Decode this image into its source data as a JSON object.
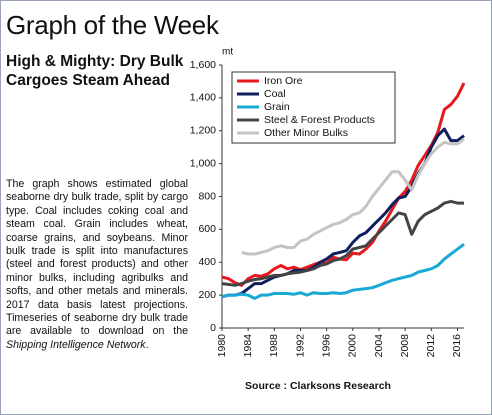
{
  "header": {
    "title": "Graph of the Week"
  },
  "subtitle": "High & Mighty: Dry Bulk Cargoes Steam Ahead",
  "body": [
    "The graph shows estimated global seaborne dry bulk trade, split by cargo type. Coal includes coking coal and steam coal. Grain includes wheat, coarse grains, and soybeans. Minor bulk trade is split into manufactures (steel and forest products) and other minor bulks, including agribulks and softs, and other metals and minerals. 2017 data basis latest projections. Timeseries of seaborne dry bulk trade are available to download on the",
    "Shipping Intelligence Network",
    "."
  ],
  "chart_data": {
    "type": "line",
    "y_unit": "mt",
    "source": "Source : Clarksons Research",
    "x": [
      1980,
      1981,
      1982,
      1983,
      1984,
      1985,
      1986,
      1987,
      1988,
      1989,
      1990,
      1991,
      1992,
      1993,
      1994,
      1995,
      1996,
      1997,
      1998,
      1999,
      2000,
      2001,
      2002,
      2003,
      2004,
      2005,
      2006,
      2007,
      2008,
      2009,
      2010,
      2011,
      2012,
      2013,
      2014,
      2015,
      2016,
      2017
    ],
    "xlim": [
      1980,
      2017
    ],
    "xticks": [
      1980,
      1984,
      1988,
      1992,
      1996,
      2000,
      2004,
      2008,
      2012,
      2016
    ],
    "ylim": [
      0,
      1600
    ],
    "yticks": [
      0,
      200,
      400,
      600,
      800,
      {
        "value": 1000,
        "label": "1,000"
      },
      {
        "value": 1200,
        "label": "1,200"
      },
      {
        "value": 1400,
        "label": "1,400"
      },
      {
        "value": 1600,
        "label": "1,600"
      }
    ],
    "legend": "top-left",
    "series": [
      {
        "name": "Iron Ore",
        "color": "#e8191e",
        "values": [
          310,
          300,
          275,
          260,
          300,
          320,
          315,
          330,
          360,
          380,
          360,
          370,
          355,
          370,
          385,
          400,
          395,
          430,
          420,
          415,
          455,
          450,
          480,
          520,
          590,
          650,
          720,
          790,
          830,
          900,
          990,
          1050,
          1110,
          1190,
          1330,
          1360,
          1410,
          1490
        ]
      },
      {
        "name": "Coal",
        "color": "#0f1f5c",
        "values": [
          190,
          200,
          200,
          210,
          240,
          270,
          270,
          290,
          310,
          320,
          330,
          350,
          350,
          350,
          370,
          400,
          420,
          450,
          460,
          470,
          520,
          560,
          580,
          620,
          660,
          700,
          750,
          790,
          800,
          860,
          940,
          1000,
          1100,
          1170,
          1210,
          1140,
          1140,
          1170
        ]
      },
      {
        "name": "Grain",
        "color": "#19a9d4",
        "values": [
          190,
          200,
          200,
          205,
          200,
          180,
          200,
          200,
          210,
          210,
          210,
          205,
          215,
          200,
          215,
          210,
          210,
          215,
          210,
          215,
          230,
          235,
          240,
          245,
          260,
          275,
          290,
          300,
          310,
          320,
          340,
          350,
          360,
          380,
          420,
          450,
          480,
          510
        ]
      },
      {
        "name": "Steel & Forest Products",
        "color": "#444444",
        "values": [
          270,
          265,
          260,
          270,
          285,
          295,
          300,
          310,
          320,
          320,
          330,
          335,
          340,
          350,
          360,
          380,
          390,
          410,
          420,
          440,
          480,
          490,
          500,
          540,
          580,
          620,
          660,
          700,
          690,
          570,
          650,
          690,
          710,
          730,
          760,
          770,
          760,
          760
        ]
      },
      {
        "name": "Other Minor Bulks",
        "color": "#c4c4c4",
        "values": [
          null,
          null,
          null,
          460,
          450,
          450,
          460,
          470,
          490,
          500,
          490,
          490,
          530,
          540,
          570,
          590,
          610,
          630,
          640,
          660,
          690,
          700,
          740,
          800,
          850,
          900,
          950,
          950,
          900,
          840,
          930,
          1000,
          1060,
          1100,
          1130,
          1120,
          1120,
          1150
        ]
      }
    ]
  }
}
